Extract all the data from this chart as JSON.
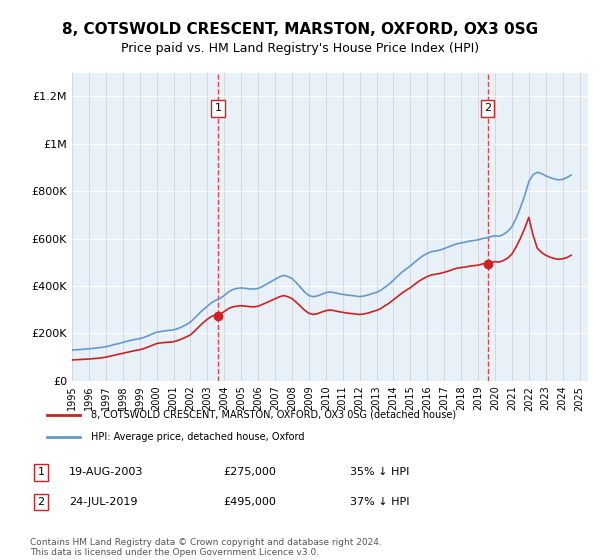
{
  "title": "8, COTSWOLD CRESCENT, MARSTON, OXFORD, OX3 0SG",
  "subtitle": "Price paid vs. HM Land Registry's House Price Index (HPI)",
  "ylabel_ticks": [
    "£0",
    "£200K",
    "£400K",
    "£600K",
    "£800K",
    "£1M",
    "£1.2M"
  ],
  "ytick_values": [
    0,
    200000,
    400000,
    600000,
    800000,
    1000000,
    1200000
  ],
  "ylim": [
    0,
    1300000
  ],
  "xlim_start": 1995.0,
  "xlim_end": 2025.5,
  "sale1_date": 2003.63,
  "sale1_price": 275000,
  "sale1_label": "1",
  "sale1_info": "19-AUG-2003    £275,000    35% ↓ HPI",
  "sale2_date": 2019.56,
  "sale2_price": 495000,
  "sale2_label": "2",
  "sale2_info": "24-JUL-2019    £495,000    37% ↓ HPI",
  "hpi_color": "#6699cc",
  "price_color": "#cc2222",
  "dashed_color": "#cc2222",
  "bg_color": "#e8f0f8",
  "legend_address": "8, COTSWOLD CRESCENT, MARSTON, OXFORD, OX3 0SG (detached house)",
  "legend_hpi": "HPI: Average price, detached house, Oxford",
  "footer": "Contains HM Land Registry data © Crown copyright and database right 2024.\nThis data is licensed under the Open Government Licence v3.0.",
  "title_fontsize": 11,
  "subtitle_fontsize": 9,
  "hpi_data_x": [
    1995.0,
    1995.25,
    1995.5,
    1995.75,
    1996.0,
    1996.25,
    1996.5,
    1996.75,
    1997.0,
    1997.25,
    1997.5,
    1997.75,
    1998.0,
    1998.25,
    1998.5,
    1998.75,
    1999.0,
    1999.25,
    1999.5,
    1999.75,
    2000.0,
    2000.25,
    2000.5,
    2000.75,
    2001.0,
    2001.25,
    2001.5,
    2001.75,
    2002.0,
    2002.25,
    2002.5,
    2002.75,
    2003.0,
    2003.25,
    2003.5,
    2003.75,
    2004.0,
    2004.25,
    2004.5,
    2004.75,
    2005.0,
    2005.25,
    2005.5,
    2005.75,
    2006.0,
    2006.25,
    2006.5,
    2006.75,
    2007.0,
    2007.25,
    2007.5,
    2007.75,
    2008.0,
    2008.25,
    2008.5,
    2008.75,
    2009.0,
    2009.25,
    2009.5,
    2009.75,
    2010.0,
    2010.25,
    2010.5,
    2010.75,
    2011.0,
    2011.25,
    2011.5,
    2011.75,
    2012.0,
    2012.25,
    2012.5,
    2012.75,
    2013.0,
    2013.25,
    2013.5,
    2013.75,
    2014.0,
    2014.25,
    2014.5,
    2014.75,
    2015.0,
    2015.25,
    2015.5,
    2015.75,
    2016.0,
    2016.25,
    2016.5,
    2016.75,
    2017.0,
    2017.25,
    2017.5,
    2017.75,
    2018.0,
    2018.25,
    2018.5,
    2018.75,
    2019.0,
    2019.25,
    2019.5,
    2019.75,
    2020.0,
    2020.25,
    2020.5,
    2020.75,
    2021.0,
    2021.25,
    2021.5,
    2021.75,
    2022.0,
    2022.25,
    2022.5,
    2022.75,
    2023.0,
    2023.25,
    2023.5,
    2023.75,
    2024.0,
    2024.25,
    2024.5
  ],
  "hpi_data_y": [
    130000,
    131000,
    132000,
    133500,
    135000,
    137000,
    139000,
    141000,
    144000,
    148000,
    153000,
    157000,
    162000,
    167000,
    171000,
    175000,
    178000,
    183000,
    190000,
    198000,
    205000,
    208000,
    211000,
    213000,
    215000,
    220000,
    228000,
    237000,
    248000,
    265000,
    283000,
    300000,
    315000,
    330000,
    340000,
    348000,
    360000,
    375000,
    385000,
    390000,
    392000,
    390000,
    388000,
    387000,
    390000,
    398000,
    408000,
    418000,
    428000,
    438000,
    445000,
    440000,
    432000,
    415000,
    395000,
    375000,
    360000,
    355000,
    358000,
    365000,
    372000,
    375000,
    372000,
    368000,
    365000,
    362000,
    360000,
    358000,
    355000,
    358000,
    362000,
    368000,
    373000,
    382000,
    395000,
    408000,
    425000,
    442000,
    458000,
    472000,
    485000,
    500000,
    515000,
    528000,
    538000,
    545000,
    548000,
    552000,
    558000,
    565000,
    572000,
    578000,
    582000,
    585000,
    590000,
    592000,
    595000,
    600000,
    603000,
    608000,
    612000,
    610000,
    618000,
    630000,
    650000,
    685000,
    730000,
    780000,
    840000,
    870000,
    880000,
    875000,
    865000,
    858000,
    852000,
    848000,
    850000,
    858000,
    868000
  ],
  "price_data_x": [
    1995.0,
    1995.25,
    1995.5,
    1995.75,
    1996.0,
    1996.25,
    1996.5,
    1996.75,
    1997.0,
    1997.25,
    1997.5,
    1997.75,
    1998.0,
    1998.25,
    1998.5,
    1998.75,
    1999.0,
    1999.25,
    1999.5,
    1999.75,
    2000.0,
    2000.25,
    2000.5,
    2000.75,
    2001.0,
    2001.25,
    2001.5,
    2001.75,
    2002.0,
    2002.25,
    2002.5,
    2002.75,
    2003.0,
    2003.25,
    2003.5,
    2003.75,
    2004.0,
    2004.25,
    2004.5,
    2004.75,
    2005.0,
    2005.25,
    2005.5,
    2005.75,
    2006.0,
    2006.25,
    2006.5,
    2006.75,
    2007.0,
    2007.25,
    2007.5,
    2007.75,
    2008.0,
    2008.25,
    2008.5,
    2008.75,
    2009.0,
    2009.25,
    2009.5,
    2009.75,
    2010.0,
    2010.25,
    2010.5,
    2010.75,
    2011.0,
    2011.25,
    2011.5,
    2011.75,
    2012.0,
    2012.25,
    2012.5,
    2012.75,
    2013.0,
    2013.25,
    2013.5,
    2013.75,
    2014.0,
    2014.25,
    2014.5,
    2014.75,
    2015.0,
    2015.25,
    2015.5,
    2015.75,
    2016.0,
    2016.25,
    2016.5,
    2016.75,
    2017.0,
    2017.25,
    2017.5,
    2017.75,
    2018.0,
    2018.25,
    2018.5,
    2018.75,
    2019.0,
    2019.25,
    2019.5,
    2019.75,
    2020.0,
    2020.25,
    2020.5,
    2020.75,
    2021.0,
    2021.25,
    2021.5,
    2021.75,
    2022.0,
    2022.25,
    2022.5,
    2022.75,
    2023.0,
    2023.25,
    2023.5,
    2023.75,
    2024.0,
    2024.25,
    2024.5
  ],
  "price_data_y": [
    88000,
    89000,
    90000,
    91000,
    92000,
    93500,
    95000,
    97000,
    100000,
    104000,
    108000,
    112000,
    116000,
    120000,
    124000,
    128000,
    131000,
    136000,
    143000,
    150000,
    157000,
    160000,
    162000,
    163000,
    165000,
    170000,
    177000,
    185000,
    194000,
    210000,
    228000,
    245000,
    260000,
    272000,
    278000,
    282000,
    292000,
    305000,
    312000,
    315000,
    317000,
    315000,
    313000,
    312000,
    315000,
    322000,
    330000,
    338000,
    346000,
    354000,
    360000,
    355000,
    347000,
    332000,
    315000,
    298000,
    285000,
    280000,
    283000,
    290000,
    296000,
    299000,
    296000,
    292000,
    289000,
    286000,
    284000,
    282000,
    280000,
    282000,
    286000,
    292000,
    297000,
    305000,
    317000,
    328000,
    342000,
    356000,
    370000,
    382000,
    393000,
    407000,
    420000,
    431000,
    440000,
    447000,
    450000,
    453000,
    458000,
    463000,
    470000,
    475000,
    478000,
    480000,
    484000,
    486000,
    488000,
    493000,
    496000,
    500000,
    503000,
    501000,
    508000,
    518000,
    535000,
    565000,
    601000,
    642000,
    690000,
    615000,
    560000,
    542000,
    530000,
    522000,
    516000,
    513000,
    515000,
    520000,
    530000
  ]
}
